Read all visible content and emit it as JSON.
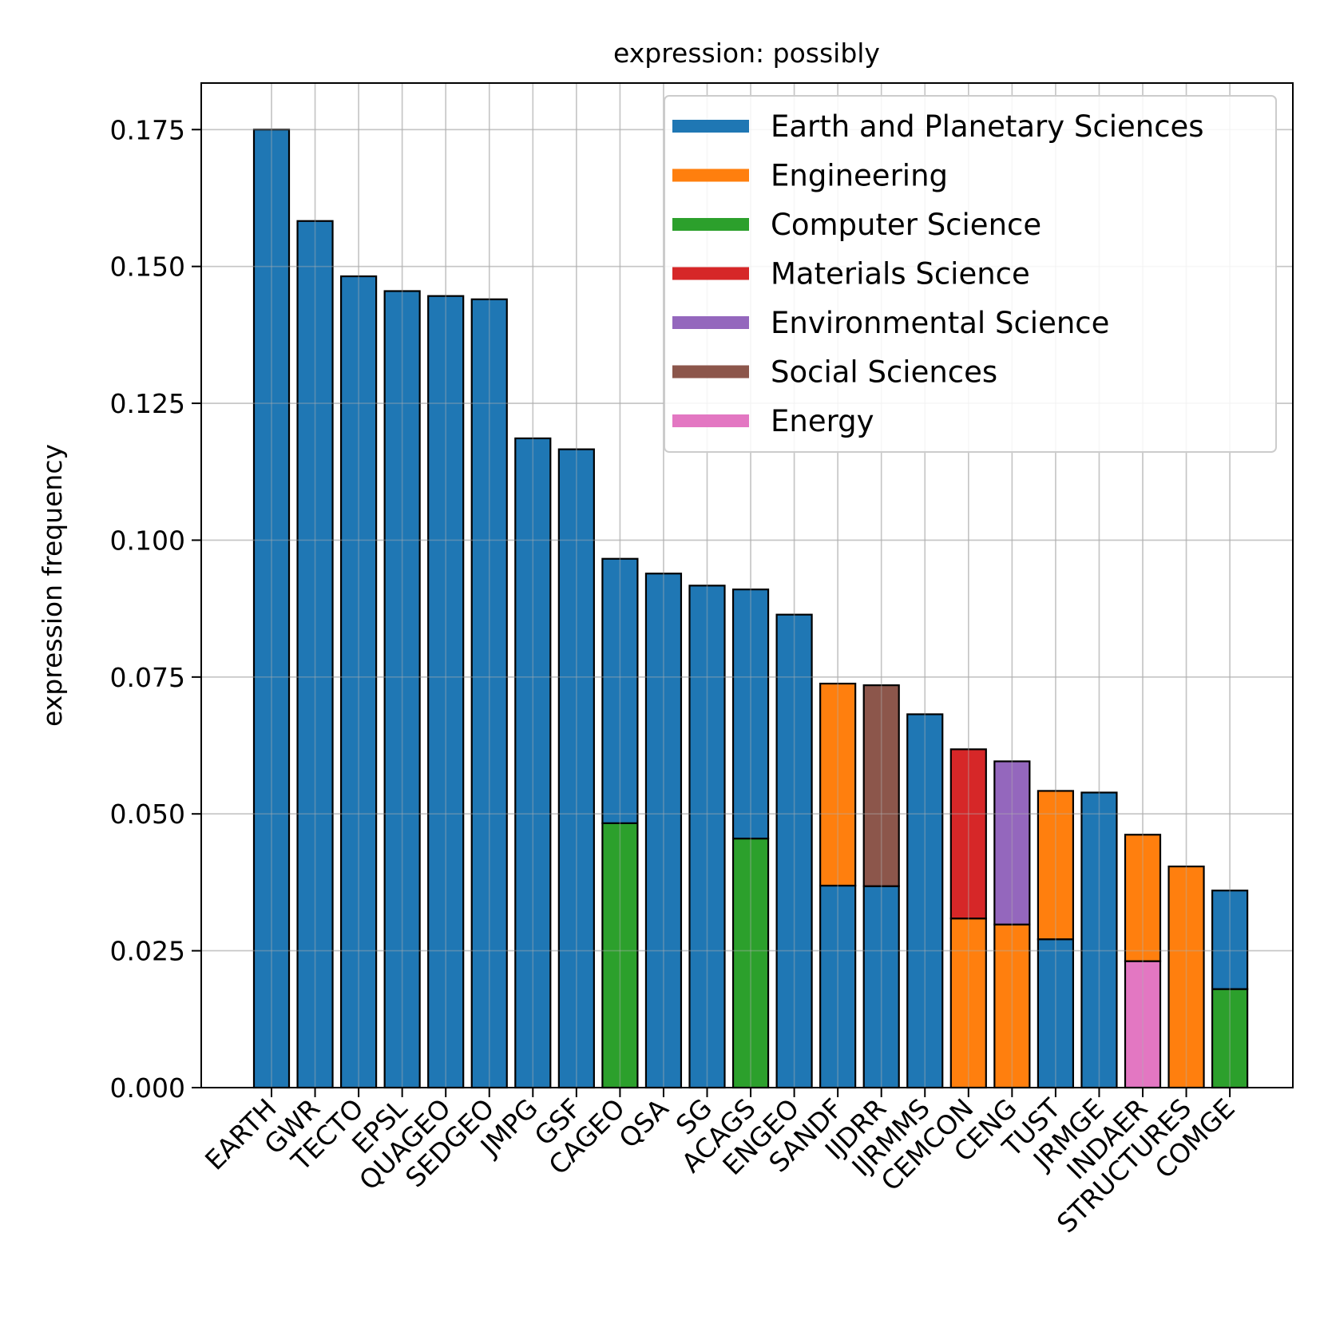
{
  "chart_data": {
    "type": "bar",
    "stacked": true,
    "title": "expression: possibly",
    "xlabel": "",
    "ylabel": "expression frequency",
    "ylim": [
      0,
      0.1835
    ],
    "yticks": [
      "0.000",
      "0.025",
      "0.050",
      "0.075",
      "0.100",
      "0.125",
      "0.150",
      "0.175"
    ],
    "grid": true,
    "legend_position": "top-right",
    "categories": [
      "EARTH",
      "GWR",
      "TECTO",
      "EPSL",
      "QUAGEO",
      "SEDGEO",
      "JMPG",
      "GSF",
      "CAGEO",
      "QSA",
      "SG",
      "ACAGS",
      "ENGEO",
      "SANDF",
      "IJDRR",
      "IJRMMS",
      "CEMCON",
      "CENG",
      "TUST",
      "JRMGE",
      "INDAER",
      "STRUCTURES",
      "COMGE"
    ],
    "colors": {
      "Earth and Planetary Sciences": "#1f77b4",
      "Engineering": "#ff7f0e",
      "Computer Science": "#2ca02c",
      "Materials Science": "#d62728",
      "Environmental Science": "#9467bd",
      "Social Sciences": "#8c564b",
      "Energy": "#e377c2"
    },
    "legend": [
      "Earth and Planetary Sciences",
      "Engineering",
      "Computer Science",
      "Materials Science",
      "Environmental Science",
      "Social Sciences",
      "Energy"
    ],
    "bars": [
      {
        "category": "EARTH",
        "segments": [
          {
            "subject": "Earth and Planetary Sciences",
            "value": 0.175
          }
        ]
      },
      {
        "category": "GWR",
        "segments": [
          {
            "subject": "Earth and Planetary Sciences",
            "value": 0.1583
          }
        ]
      },
      {
        "category": "TECTO",
        "segments": [
          {
            "subject": "Earth and Planetary Sciences",
            "value": 0.1482
          }
        ]
      },
      {
        "category": "EPSL",
        "segments": [
          {
            "subject": "Earth and Planetary Sciences",
            "value": 0.1455
          }
        ]
      },
      {
        "category": "QUAGEO",
        "segments": [
          {
            "subject": "Earth and Planetary Sciences",
            "value": 0.1446
          }
        ]
      },
      {
        "category": "SEDGEO",
        "segments": [
          {
            "subject": "Earth and Planetary Sciences",
            "value": 0.144
          }
        ]
      },
      {
        "category": "JMPG",
        "segments": [
          {
            "subject": "Earth and Planetary Sciences",
            "value": 0.1186
          }
        ]
      },
      {
        "category": "GSF",
        "segments": [
          {
            "subject": "Earth and Planetary Sciences",
            "value": 0.1166
          }
        ]
      },
      {
        "category": "CAGEO",
        "segments": [
          {
            "subject": "Computer Science",
            "value": 0.0483
          },
          {
            "subject": "Earth and Planetary Sciences",
            "value": 0.0483
          }
        ]
      },
      {
        "category": "QSA",
        "segments": [
          {
            "subject": "Earth and Planetary Sciences",
            "value": 0.0939
          }
        ]
      },
      {
        "category": "SG",
        "segments": [
          {
            "subject": "Earth and Planetary Sciences",
            "value": 0.0917
          }
        ]
      },
      {
        "category": "ACAGS",
        "segments": [
          {
            "subject": "Computer Science",
            "value": 0.0455
          },
          {
            "subject": "Earth and Planetary Sciences",
            "value": 0.0455
          }
        ]
      },
      {
        "category": "ENGEO",
        "segments": [
          {
            "subject": "Earth and Planetary Sciences",
            "value": 0.0864
          }
        ]
      },
      {
        "category": "SANDF",
        "segments": [
          {
            "subject": "Earth and Planetary Sciences",
            "value": 0.0369
          },
          {
            "subject": "Engineering",
            "value": 0.0369
          }
        ]
      },
      {
        "category": "IJDRR",
        "segments": [
          {
            "subject": "Earth and Planetary Sciences",
            "value": 0.0368
          },
          {
            "subject": "Social Sciences",
            "value": 0.0367
          }
        ]
      },
      {
        "category": "IJRMMS",
        "segments": [
          {
            "subject": "Earth and Planetary Sciences",
            "value": 0.0682
          }
        ]
      },
      {
        "category": "CEMCON",
        "segments": [
          {
            "subject": "Engineering",
            "value": 0.0309
          },
          {
            "subject": "Materials Science",
            "value": 0.0309
          }
        ]
      },
      {
        "category": "CENG",
        "segments": [
          {
            "subject": "Engineering",
            "value": 0.0298
          },
          {
            "subject": "Environmental Science",
            "value": 0.0298
          }
        ]
      },
      {
        "category": "TUST",
        "segments": [
          {
            "subject": "Earth and Planetary Sciences",
            "value": 0.0271
          },
          {
            "subject": "Engineering",
            "value": 0.0271
          }
        ]
      },
      {
        "category": "JRMGE",
        "segments": [
          {
            "subject": "Earth and Planetary Sciences",
            "value": 0.0539
          }
        ]
      },
      {
        "category": "INDAER",
        "segments": [
          {
            "subject": "Energy",
            "value": 0.0231
          },
          {
            "subject": "Engineering",
            "value": 0.0231
          }
        ]
      },
      {
        "category": "STRUCTURES",
        "segments": [
          {
            "subject": "Engineering",
            "value": 0.0404
          }
        ]
      },
      {
        "category": "COMGE",
        "segments": [
          {
            "subject": "Computer Science",
            "value": 0.018
          },
          {
            "subject": "Earth and Planetary Sciences",
            "value": 0.018
          }
        ]
      }
    ]
  }
}
